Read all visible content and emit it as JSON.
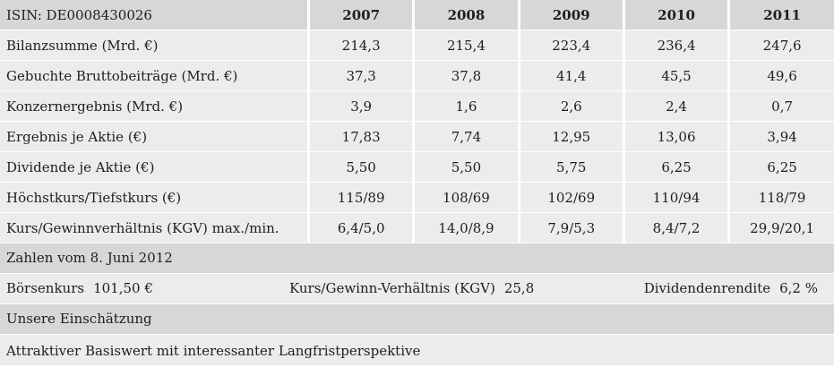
{
  "header": {
    "isin": "ISIN: DE0008430026",
    "years": [
      "2007",
      "2008",
      "2009",
      "2010",
      "2011"
    ]
  },
  "rows": [
    {
      "label": "Bilanzsumme (Mrd. €)",
      "values": [
        "214,3",
        "215,4",
        "223,4",
        "236,4",
        "247,6"
      ]
    },
    {
      "label": "Gebuchte Bruttobeiträge (Mrd. €)",
      "values": [
        "37,3",
        "37,8",
        "41,4",
        "45,5",
        "49,6"
      ]
    },
    {
      "label": "Konzernergebnis (Mrd. €)",
      "values": [
        "3,9",
        "1,6",
        "2,6",
        "2,4",
        "0,7"
      ]
    },
    {
      "label": "Ergebnis je Aktie (€)",
      "values": [
        "17,83",
        "7,74",
        "12,95",
        "13,06",
        "3,94"
      ]
    },
    {
      "label": "Dividende je Aktie (€)",
      "values": [
        "5,50",
        "5,50",
        "5,75",
        "6,25",
        "6,25"
      ]
    },
    {
      "label": "Höchstkurs/Tiefstkurs (€)",
      "values": [
        "115/89",
        "108/69",
        "102/69",
        "110/94",
        "118/79"
      ]
    },
    {
      "label": "Kurs/Gewinnverhältnis (KGV) max./min.",
      "values": [
        "6,4/5,0",
        "14,0/8,9",
        "7,9/5,3",
        "8,4/7,2",
        "29,9/20,1"
      ]
    }
  ],
  "snapshot": {
    "title": "Zahlen vom 8. Juni 2012",
    "boersenkurs_label": "Börsenkurs",
    "boersenkurs_value": "101,50 €",
    "kgv_label": "Kurs/Gewinn-Verhältnis (KGV)",
    "kgv_value": "25,8",
    "rendite_label": "Dividendenrendite",
    "rendite_value": "6,2 %"
  },
  "assessment": {
    "title": "Unsere Einschätzung",
    "text": "Attraktiver Basiswert mit interessanter Langfristperspektive"
  }
}
